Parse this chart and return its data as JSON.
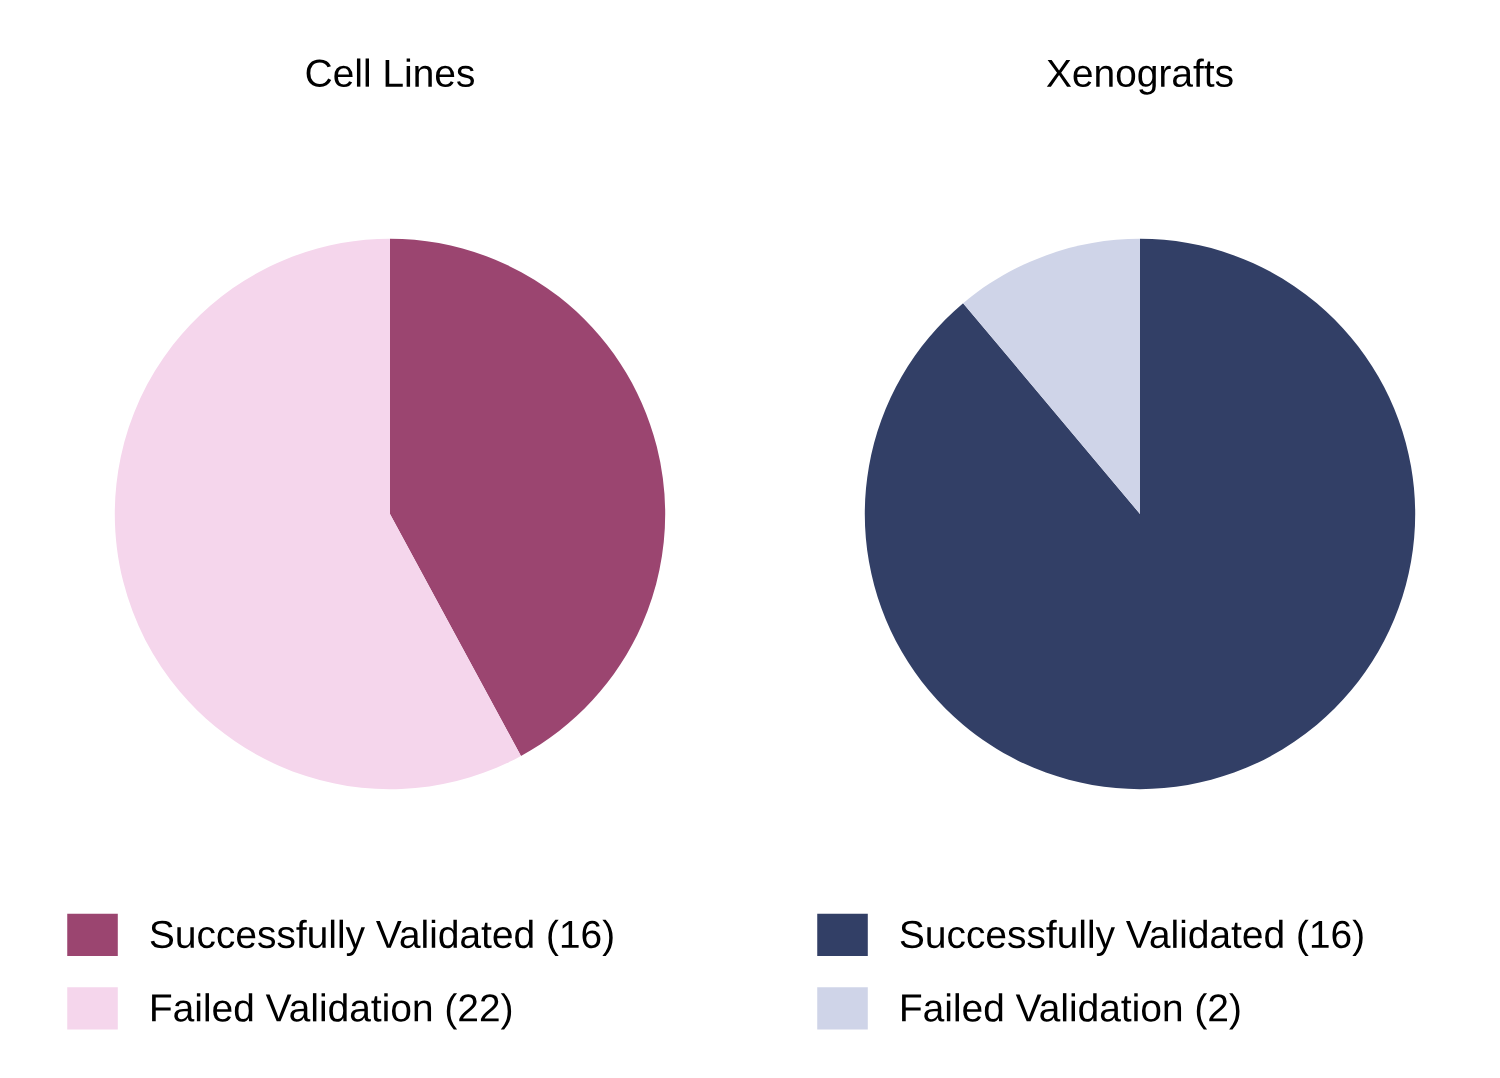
{
  "chart_data": [
    {
      "type": "pie",
      "title": "Cell Lines",
      "categories": [
        "Successfully Validated (16)",
        "Failed Validation (22)"
      ],
      "values": [
        16,
        22
      ],
      "colors": [
        "#9b4570",
        "#f5d6ec"
      ],
      "legend": "bottom"
    },
    {
      "type": "pie",
      "title": "Xenografts",
      "categories": [
        "Successfully Validated (16)",
        "Failed Validation (2)"
      ],
      "values": [
        16,
        2
      ],
      "colors": [
        "#323f66",
        "#cfd4e8"
      ],
      "legend": "bottom"
    }
  ]
}
